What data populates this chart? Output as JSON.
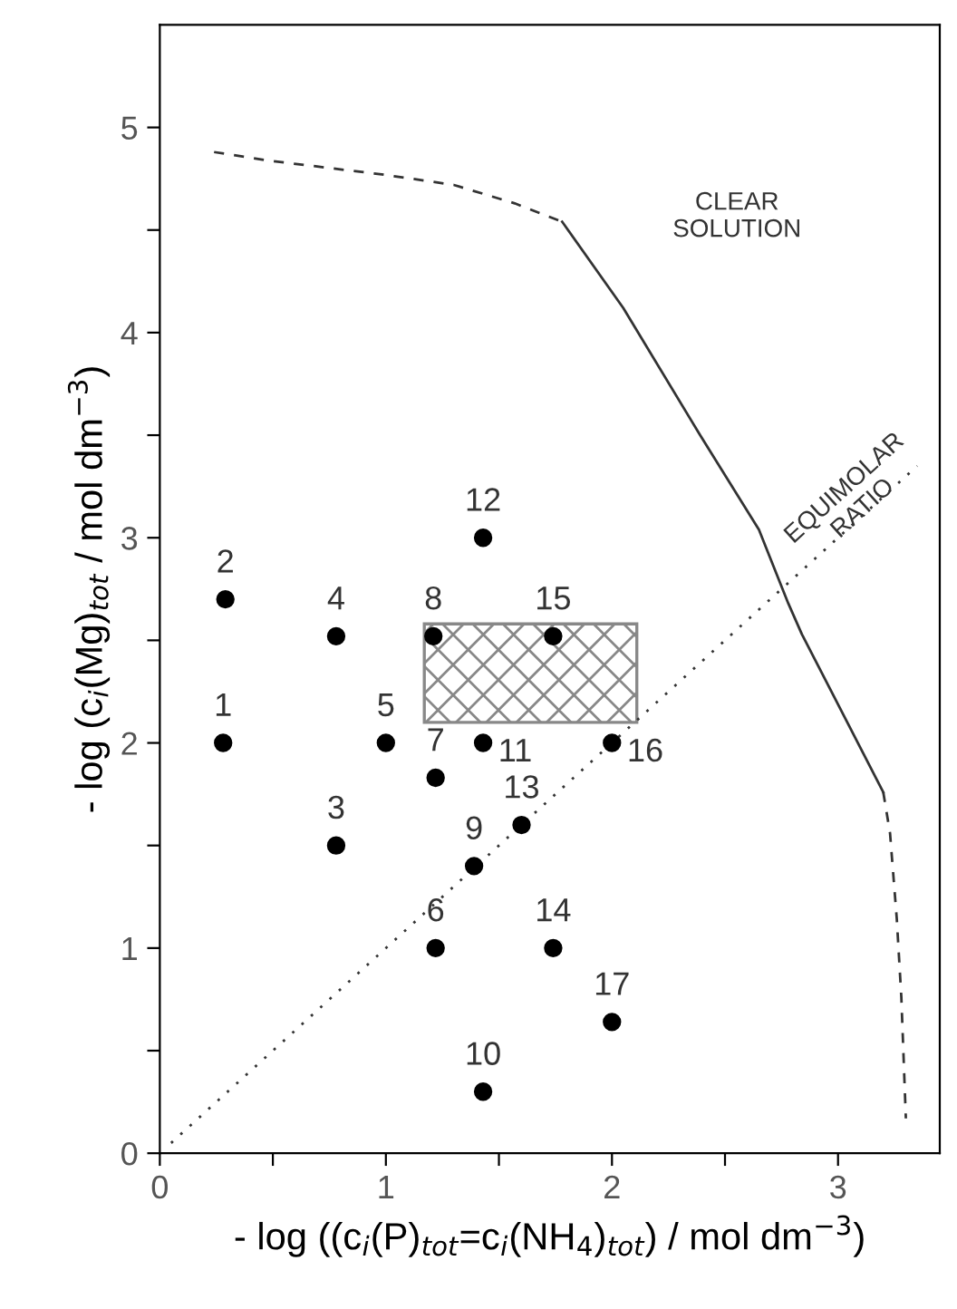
{
  "chart_data": {
    "type": "scatter",
    "xlabel": "- log ((c$_{i}$(P)$_{tot}$=c$_{i}$(NH$_{4}$)$_{tot}$) / mol dm$^{−3}$)",
    "ylabel": "- log (c$_{i}$(Mg)$_{tot}$ / mol dm$^{−3}$)",
    "xlim": [
      0,
      3.45
    ],
    "ylim": [
      0,
      5.5
    ],
    "xticks": [
      0,
      {
        "value": 0.5,
        "label": null
      },
      1,
      {
        "value": 1.5,
        "label": null
      },
      2,
      {
        "value": 2.5,
        "label": null
      },
      3
    ],
    "yticks": [
      0,
      {
        "value": 0.5,
        "label": null
      },
      1,
      {
        "value": 1.5,
        "label": null
      },
      2,
      {
        "value": 2.5,
        "label": null
      },
      3,
      {
        "value": 3.5,
        "label": null
      },
      4,
      {
        "value": 4.5,
        "label": null
      },
      5
    ],
    "grid": false,
    "series": [
      {
        "type": "area",
        "color": "#888888",
        "x": [
          1.17,
          1.17,
          2.11,
          2.11
        ],
        "values": [
          2.1,
          2.58,
          2.58,
          2.1
        ]
      },
      {
        "type": "line",
        "line_style": "dashed",
        "color": "#333333",
        "x": [
          0.24,
          0.47,
          0.99,
          1.3,
          1.57,
          1.78
        ],
        "values": [
          4.88,
          4.84,
          4.77,
          4.72,
          4.63,
          4.54
        ]
      },
      {
        "type": "line",
        "line_style": "solid",
        "color": "#333333",
        "x": [
          1.78,
          2.05,
          2.39,
          2.65,
          2.78,
          2.84,
          3.2
        ],
        "values": [
          4.54,
          4.12,
          3.5,
          3.04,
          2.68,
          2.53,
          1.76
        ]
      },
      {
        "type": "line",
        "line_style": "dashed",
        "color": "#333333",
        "x": [
          3.2,
          3.23,
          3.26,
          3.28,
          3.3
        ],
        "values": [
          1.76,
          1.56,
          1.14,
          0.76,
          0.17
        ]
      },
      {
        "type": "line",
        "line_style": "dotted",
        "color": "#333333",
        "x": [
          0.05,
          3.35
        ],
        "values": [
          0.05,
          3.35
        ]
      },
      {
        "marker": "circle",
        "color": "#000000",
        "x": [
          0.28,
          0.29,
          0.78,
          0.78,
          1.0,
          1.22,
          1.22,
          1.21,
          1.39,
          1.43,
          1.43,
          1.43,
          1.6,
          1.74,
          1.74,
          2.0,
          2.0
        ],
        "values": [
          2.0,
          2.7,
          1.5,
          2.52,
          2.0,
          1.0,
          1.83,
          2.52,
          1.4,
          0.3,
          2.0,
          3.0,
          1.6,
          1.0,
          2.52,
          2.0,
          0.64
        ]
      }
    ],
    "annotations": [
      "CLEAR\nSOLUTION",
      "EQUIMOLAR\nRATIO",
      {
        "text": "1",
        "x": 0.28,
        "y": 2.0
      },
      {
        "text": "2",
        "x": 0.29,
        "y": 2.7
      },
      {
        "text": "3",
        "x": 0.78,
        "y": 1.5
      },
      {
        "text": "4",
        "x": 0.78,
        "y": 2.52
      },
      {
        "text": "5",
        "x": 1.0,
        "y": 2.0
      },
      {
        "text": "6",
        "x": 1.22,
        "y": 1.0
      },
      {
        "text": "7",
        "x": 1.22,
        "y": 1.83
      },
      {
        "text": "8",
        "x": 1.21,
        "y": 2.52
      },
      {
        "text": "9",
        "x": 1.39,
        "y": 1.4
      },
      {
        "text": "10",
        "x": 1.43,
        "y": 0.3
      },
      {
        "text": "11",
        "x": 1.43,
        "y": 2.0
      },
      {
        "text": "12",
        "x": 1.43,
        "y": 3.0
      },
      {
        "text": "13",
        "x": 1.6,
        "y": 1.6
      },
      {
        "text": "14",
        "x": 1.74,
        "y": 1.0
      },
      {
        "text": "15",
        "x": 1.74,
        "y": 2.52
      },
      {
        "text": "16",
        "x": 2.0,
        "y": 2.0
      },
      {
        "text": "17",
        "x": 2.0,
        "y": 0.64
      }
    ]
  }
}
